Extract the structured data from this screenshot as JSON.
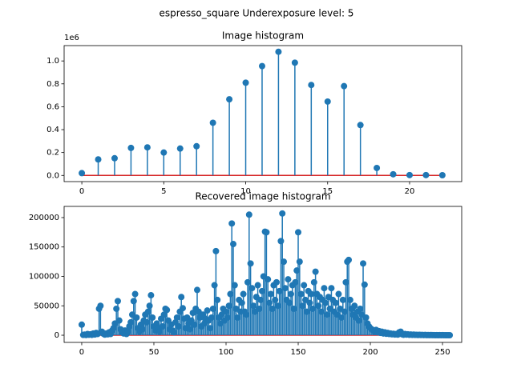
{
  "title": "espresso_square Underexposure level: 5",
  "chart_data": [
    {
      "type": "stem",
      "title": "Image histogram",
      "offset_label": "1e6",
      "color": "#1f77b4",
      "baseline_color": "#d62728",
      "x": [
        0,
        1,
        2,
        3,
        4,
        5,
        6,
        7,
        8,
        9,
        10,
        11,
        12,
        13,
        14,
        15,
        16,
        17,
        18,
        19,
        20,
        21,
        22
      ],
      "values": [
        0.02,
        0.14,
        0.15,
        0.24,
        0.245,
        0.2,
        0.235,
        0.255,
        0.46,
        0.665,
        0.81,
        0.955,
        1.08,
        0.985,
        0.79,
        0.645,
        0.78,
        0.44,
        0.065,
        0.01,
        0.003,
        0.003,
        0.002
      ],
      "xlim": [
        -1.08,
        23.18
      ],
      "xticks": [
        0,
        5,
        10,
        15,
        20
      ],
      "ylim": [
        -0.054,
        1.134
      ],
      "yticks": [
        {
          "value": 0,
          "label": "0.0"
        },
        {
          "value": 0.2,
          "label": "0.2"
        },
        {
          "value": 0.4,
          "label": "0.4"
        },
        {
          "value": 0.6,
          "label": "0.6"
        },
        {
          "value": 0.8,
          "label": "0.8"
        },
        {
          "value": 1,
          "label": "1.0"
        }
      ]
    },
    {
      "type": "stem",
      "title": "Recovered image histogram",
      "color": "#1f77b4",
      "baseline_color": "#d62728",
      "x": [
        0,
        1,
        2,
        3,
        4,
        5,
        6,
        7,
        8,
        9,
        10,
        11,
        12,
        13,
        14,
        15,
        16,
        17,
        18,
        19,
        20,
        21,
        22,
        23,
        24,
        25,
        26,
        27,
        28,
        29,
        30,
        31,
        32,
        33,
        34,
        35,
        36,
        37,
        38,
        39,
        40,
        41,
        42,
        43,
        44,
        45,
        46,
        47,
        48,
        49,
        50,
        51,
        52,
        53,
        54,
        55,
        56,
        57,
        58,
        59,
        60,
        61,
        62,
        63,
        64,
        65,
        66,
        67,
        68,
        69,
        70,
        71,
        72,
        73,
        74,
        75,
        76,
        77,
        78,
        79,
        80,
        81,
        82,
        83,
        84,
        85,
        86,
        87,
        88,
        89,
        90,
        91,
        92,
        93,
        94,
        95,
        96,
        97,
        98,
        99,
        100,
        101,
        102,
        103,
        104,
        105,
        106,
        107,
        108,
        109,
        110,
        111,
        112,
        113,
        114,
        115,
        116,
        117,
        118,
        119,
        120,
        121,
        122,
        123,
        124,
        125,
        126,
        127,
        128,
        129,
        130,
        131,
        132,
        133,
        134,
        135,
        136,
        137,
        138,
        139,
        140,
        141,
        142,
        143,
        144,
        145,
        146,
        147,
        148,
        149,
        150,
        151,
        152,
        153,
        154,
        155,
        156,
        157,
        158,
        159,
        160,
        161,
        162,
        163,
        164,
        165,
        166,
        167,
        168,
        169,
        170,
        171,
        172,
        173,
        174,
        175,
        176,
        177,
        178,
        179,
        180,
        181,
        182,
        183,
        184,
        185,
        186,
        187,
        188,
        189,
        190,
        191,
        192,
        193,
        194,
        195,
        196,
        197,
        198,
        199,
        200,
        201,
        202,
        203,
        204,
        205,
        206,
        207,
        208,
        209,
        210,
        211,
        212,
        213,
        214,
        215,
        216,
        217,
        218,
        219,
        220,
        221,
        222,
        223,
        224,
        225,
        226,
        227,
        228,
        229,
        230,
        231,
        232,
        233,
        234,
        235,
        236,
        237,
        238,
        239,
        240,
        241,
        242,
        243,
        244,
        245,
        246,
        247,
        248,
        249,
        250,
        251,
        252,
        253,
        254,
        255
      ],
      "values": [
        18000,
        500,
        1000,
        300,
        2000,
        800,
        1500,
        600,
        3000,
        1200,
        4000,
        2000,
        45000,
        50000,
        6000,
        2500,
        1000,
        3000,
        1500,
        5000,
        2000,
        8000,
        12000,
        20000,
        45000,
        58000,
        25000,
        10000,
        5000,
        3000,
        8000,
        2000,
        6000,
        15000,
        22000,
        35000,
        58000,
        70000,
        30000,
        12000,
        6000,
        18000,
        10000,
        25000,
        35000,
        22000,
        40000,
        50000,
        68000,
        30000,
        15000,
        8000,
        20000,
        12000,
        6000,
        28000,
        15000,
        35000,
        45000,
        43000,
        25000,
        10000,
        18000,
        8000,
        5000,
        22000,
        30000,
        15000,
        40000,
        65000,
        46000,
        28000,
        12000,
        30000,
        20000,
        10000,
        25000,
        38000,
        18000,
        45000,
        77000,
        40000,
        30000,
        15000,
        35000,
        20000,
        28000,
        42000,
        25000,
        12000,
        30000,
        45000,
        85000,
        143000,
        60000,
        30000,
        20000,
        35000,
        45000,
        25000,
        40000,
        30000,
        50000,
        70000,
        190000,
        155000,
        85000,
        45000,
        30000,
        60000,
        40000,
        55000,
        70000,
        40000,
        35000,
        90000,
        205000,
        122000,
        80000,
        50000,
        40000,
        65000,
        85000,
        45000,
        60000,
        75000,
        100000,
        176000,
        175000,
        95000,
        55000,
        70000,
        45000,
        85000,
        60000,
        90000,
        50000,
        75000,
        160000,
        207000,
        125000,
        80000,
        60000,
        95000,
        55000,
        70000,
        85000,
        45000,
        90000,
        110000,
        175000,
        125000,
        70000,
        50000,
        85000,
        60000,
        40000,
        75000,
        55000,
        70000,
        45000,
        90000,
        108000,
        70000,
        50000,
        65000,
        40000,
        60000,
        80000,
        55000,
        35000,
        65000,
        45000,
        80000,
        60000,
        40000,
        55000,
        35000,
        70000,
        45000,
        30000,
        60000,
        40000,
        90000,
        125000,
        128000,
        60000,
        45000,
        35000,
        50000,
        30000,
        40000,
        25000,
        45000,
        35000,
        122000,
        86000,
        30000,
        20000,
        15000,
        12000,
        10000,
        8000,
        6000,
        9000,
        5000,
        7000,
        4000,
        6000,
        3000,
        5000,
        2500,
        4000,
        2000,
        3000,
        1500,
        2500,
        1200,
        2000,
        1000,
        5000,
        6000,
        1500,
        800,
        2000,
        1000,
        1500,
        700,
        1200,
        600,
        1000,
        500,
        800,
        400,
        700,
        300,
        600,
        250,
        500,
        200,
        400,
        180,
        300,
        150,
        250,
        120,
        200,
        100,
        180,
        90,
        150,
        80,
        120,
        60,
        100,
        50
      ],
      "xlim": [
        -12.2,
        263.3
      ],
      "xticks": [
        0,
        50,
        100,
        150,
        200,
        250
      ],
      "ylim": [
        -12200,
        219000
      ],
      "yticks": [
        0,
        50000,
        100000,
        150000,
        200000
      ]
    }
  ]
}
